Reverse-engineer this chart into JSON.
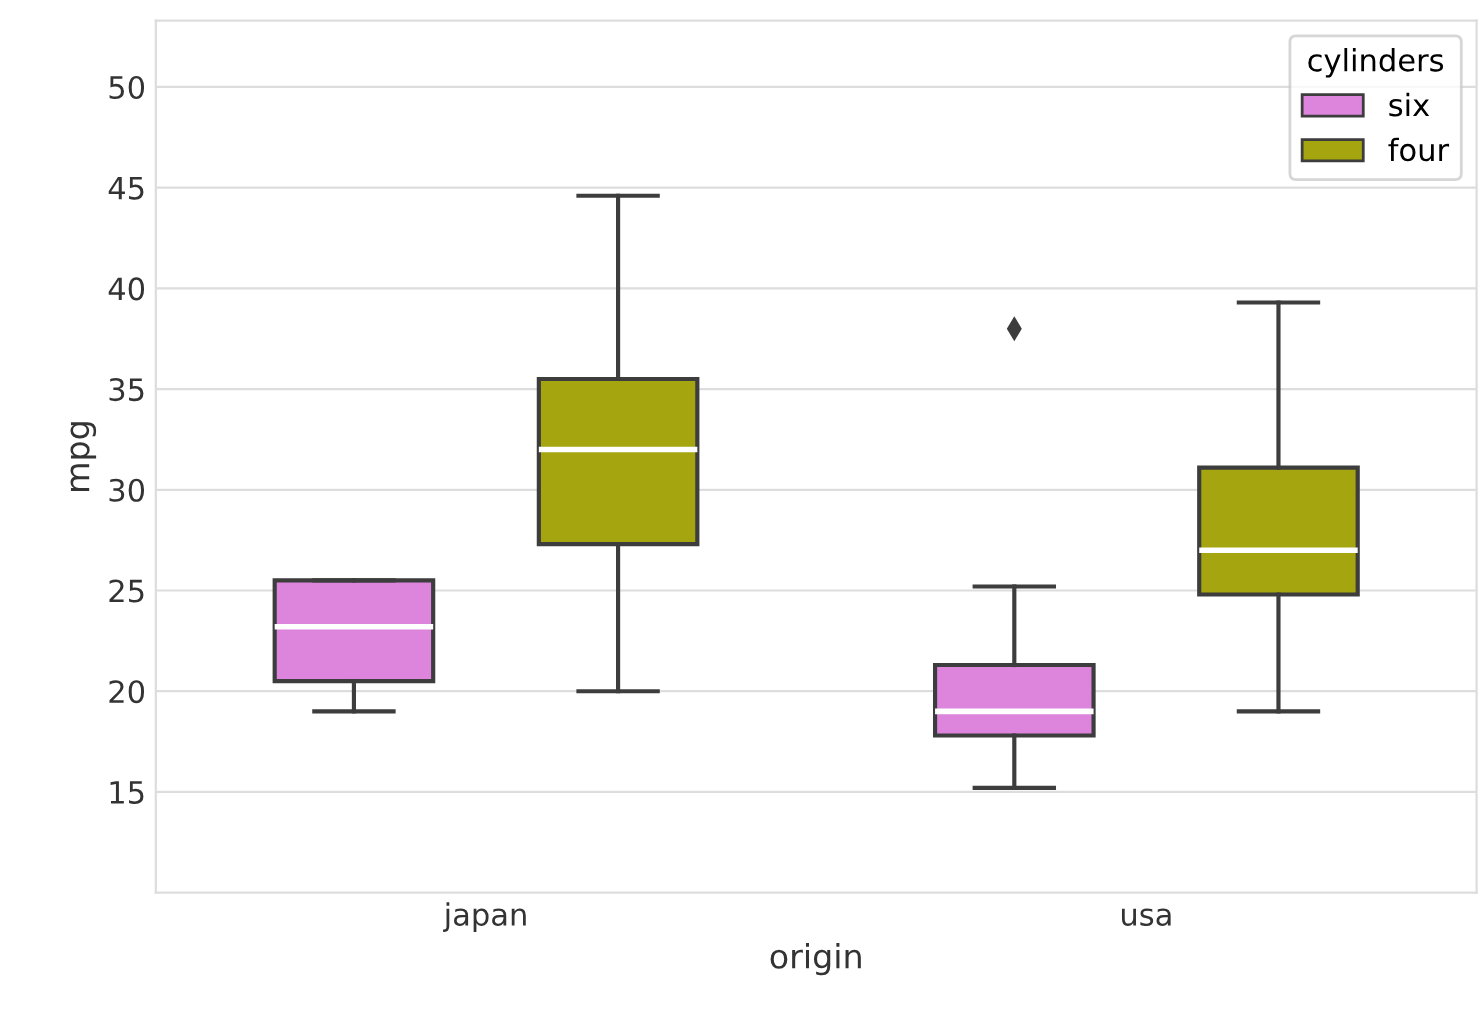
{
  "chart_data": {
    "type": "box",
    "xlabel": "origin",
    "ylabel": "mpg",
    "legend_title": "cylinders",
    "categories": [
      "japan",
      "usa"
    ],
    "series": [
      {
        "name": "six",
        "color": "#dd85dd",
        "boxes": [
          {
            "low": 19.0,
            "q1": 20.5,
            "median": 23.2,
            "q3": 25.5,
            "high": 25.5
          },
          {
            "low": 15.2,
            "q1": 17.8,
            "median": 19.0,
            "q3": 21.3,
            "high": 25.2,
            "outliers": [
              38
            ]
          }
        ]
      },
      {
        "name": "four",
        "color": "#a5a50f",
        "boxes": [
          {
            "low": 20,
            "q1": 27.3,
            "median": 32.0,
            "q3": 35.5,
            "high": 44.6
          },
          {
            "low": 19.0,
            "q1": 24.8,
            "median": 27.0,
            "q3": 31.1,
            "high": 39.3
          }
        ]
      }
    ],
    "ylim": [
      10,
      53.3
    ],
    "yticks": [
      15,
      20,
      25,
      30,
      35,
      40,
      45,
      50
    ],
    "grid": "y",
    "legend": "top right"
  }
}
